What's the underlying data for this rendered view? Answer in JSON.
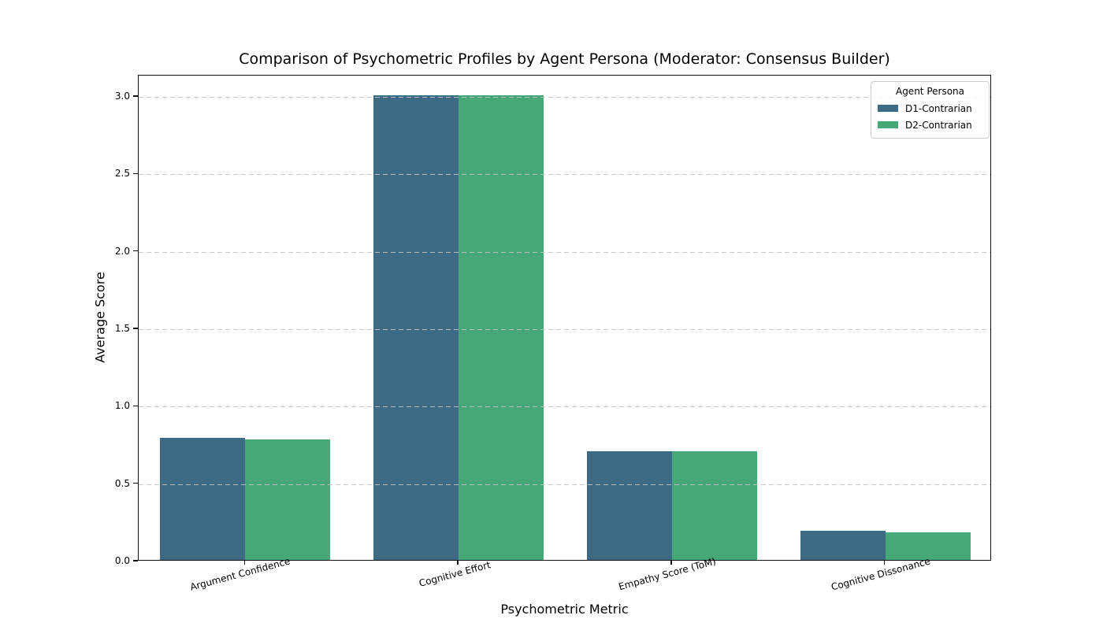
{
  "chart_data": {
    "type": "bar",
    "title": "Comparison of Psychometric Profiles by Agent Persona (Moderator: Consensus Builder)",
    "xlabel": "Psychometric Metric",
    "ylabel": "Average Score",
    "categories": [
      "Argument Confidence",
      "Cognitive Effort",
      "Empathy Score (ToM)",
      "Cognitive Dissonance"
    ],
    "series": [
      {
        "name": "D1-Contrarian",
        "color": "#3d6a85",
        "values": [
          0.79,
          3.0,
          0.7,
          0.19
        ]
      },
      {
        "name": "D2-Contrarian",
        "color": "#45a876",
        "values": [
          0.78,
          3.0,
          0.7,
          0.18
        ]
      }
    ],
    "y_ticks": [
      0.0,
      0.5,
      1.0,
      1.5,
      2.0,
      2.5,
      3.0
    ],
    "ylim": [
      0,
      3.14
    ],
    "legend_title": "Agent Persona",
    "legend_position": "upper right",
    "grid": "horizontal-dashed-above-bars",
    "colors": {
      "spine": "#111111",
      "gridline": "#c3c3c3",
      "background": "#ffffff",
      "text": "#000000"
    }
  }
}
